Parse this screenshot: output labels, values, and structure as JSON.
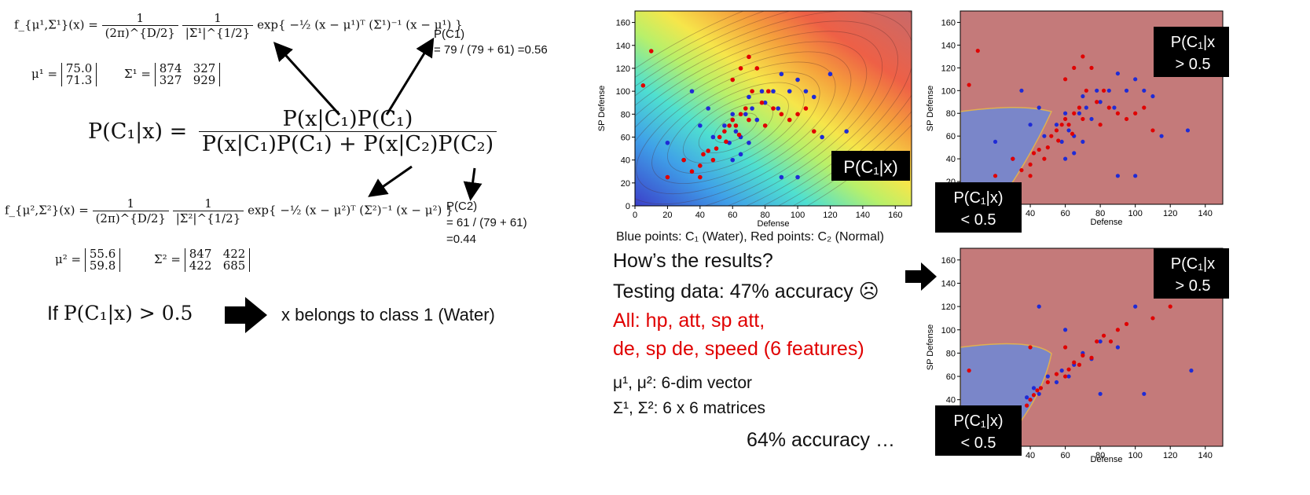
{
  "left": {
    "f1": {
      "lhs": "f_{μ¹,Σ¹}(x) =",
      "coef1_num": "1",
      "coef1_den": "(2π)^{D/2}",
      "coef2_num": "1",
      "coef2_den": "|Σ¹|^{1/2}",
      "exp": "exp{ −½ (x − μ¹)ᵀ (Σ¹)⁻¹ (x − μ¹) }"
    },
    "mu1": {
      "label": "μ¹ =",
      "values": [
        "75.0",
        "71.3"
      ]
    },
    "sigma1": {
      "label": "Σ¹ =",
      "row1": [
        "874",
        "327"
      ],
      "row2": [
        "327",
        "929"
      ]
    },
    "pc1": {
      "label": "P(C1)",
      "value": "= 79 / (79 + 61) =0.56"
    },
    "bayes": {
      "lhs": "P(C₁|x)  =",
      "numerator": "P(x|C₁)P(C₁)",
      "denominator": "P(x|C₁)P(C₁) + P(x|C₂)P(C₂)"
    },
    "f2": {
      "lhs": "f_{μ²,Σ²}(x) =",
      "coef1_num": "1",
      "coef1_den": "(2π)^{D/2}",
      "coef2_num": "1",
      "coef2_den": "|Σ²|^{1/2}",
      "exp": "exp{ −½ (x − μ²)ᵀ (Σ²)⁻¹ (x − μ²) }"
    },
    "pc2": {
      "label": "P(C2)",
      "value1": "= 61 / (79 + 61)",
      "value2": "=0.44"
    },
    "mu2": {
      "label": "μ² =",
      "values": [
        "55.6",
        "59.8"
      ]
    },
    "sigma2": {
      "label": "Σ² =",
      "row1": [
        "847",
        "422"
      ],
      "row2": [
        "422",
        "685"
      ]
    },
    "rule": {
      "if": "If",
      "cond": "P(C₁|x) > 0.5",
      "result": "x belongs to class 1 (Water)"
    }
  },
  "middle": {
    "legend": "Blue points: C₁ (Water), Red points: C₂ (Normal)",
    "question": "How’s the results?",
    "testing": "Testing data: 47% accuracy ☹",
    "all_line1": "All: hp, att, sp att,",
    "all_line2": "de, sp de, speed (6 features)",
    "mu_line": "μ¹, μ²: 6-dim vector",
    "sigma_line": "Σ¹, Σ²: 6 x 6 matrices",
    "accuracy": "64% accuracy …"
  },
  "plots": {
    "xlabel": "Defense",
    "ylabel": "SP Defense",
    "label_posterior": "P(C₁|x)",
    "label_gt_1": "P(C₁|x",
    "label_gt_2": "> 0.5",
    "label_lt_1": "P(C₁|x)",
    "label_lt_2": "< 0.5"
  },
  "chart_data": [
    {
      "type": "scatter",
      "title": "",
      "xlabel": "Defense",
      "ylabel": "SP Defense",
      "xlim": [
        0,
        170
      ],
      "ylim": [
        0,
        170
      ],
      "xticks": [
        0,
        20,
        40,
        60,
        80,
        100,
        120,
        140,
        160
      ],
      "yticks": [
        0,
        20,
        40,
        60,
        80,
        100,
        120,
        140,
        160
      ],
      "background": "posterior heatmap P(C1|x)",
      "series": [
        {
          "color": "#1f2bd6",
          "points": [
            [
              20,
              55
            ],
            [
              30,
              40
            ],
            [
              40,
              70
            ],
            [
              48,
              60
            ],
            [
              55,
              70
            ],
            [
              58,
              55
            ],
            [
              60,
              40
            ],
            [
              62,
              65
            ],
            [
              65,
              60
            ],
            [
              65,
              45
            ],
            [
              68,
              80
            ],
            [
              70,
              95
            ],
            [
              72,
              85
            ],
            [
              75,
              75
            ],
            [
              78,
              100
            ],
            [
              80,
              90
            ],
            [
              85,
              100
            ],
            [
              88,
              85
            ],
            [
              90,
              115
            ],
            [
              95,
              100
            ],
            [
              100,
              110
            ],
            [
              105,
              100
            ],
            [
              110,
              95
            ],
            [
              115,
              60
            ],
            [
              130,
              65
            ],
            [
              90,
              25
            ],
            [
              100,
              25
            ],
            [
              120,
              115
            ],
            [
              70,
              55
            ],
            [
              60,
              80
            ],
            [
              45,
              85
            ],
            [
              35,
              100
            ]
          ]
        },
        {
          "color": "#e00000",
          "points": [
            [
              5,
              105
            ],
            [
              10,
              135
            ],
            [
              20,
              25
            ],
            [
              30,
              40
            ],
            [
              35,
              30
            ],
            [
              40,
              35
            ],
            [
              42,
              45
            ],
            [
              45,
              48
            ],
            [
              50,
              50
            ],
            [
              52,
              60
            ],
            [
              55,
              65
            ],
            [
              58,
              70
            ],
            [
              60,
              75
            ],
            [
              62,
              70
            ],
            [
              65,
              80
            ],
            [
              68,
              85
            ],
            [
              70,
              75
            ],
            [
              72,
              100
            ],
            [
              75,
              120
            ],
            [
              78,
              90
            ],
            [
              80,
              70
            ],
            [
              82,
              100
            ],
            [
              85,
              85
            ],
            [
              90,
              80
            ],
            [
              95,
              75
            ],
            [
              100,
              80
            ],
            [
              105,
              85
            ],
            [
              110,
              65
            ],
            [
              70,
              130
            ],
            [
              65,
              120
            ],
            [
              60,
              110
            ],
            [
              40,
              25
            ],
            [
              48,
              40
            ],
            [
              56,
              56
            ],
            [
              64,
              62
            ]
          ]
        }
      ]
    },
    {
      "type": "scatter",
      "title": "",
      "xlabel": "Defense",
      "ylabel": "SP Defense",
      "xlim": [
        0,
        150
      ],
      "ylim": [
        0,
        170
      ],
      "xticks": [
        40,
        60,
        80,
        100,
        120,
        140
      ],
      "yticks": [
        20,
        40,
        60,
        80,
        100,
        120,
        140,
        160
      ],
      "background": "decision region P(C1|x) > 0.5 vs < 0.5"
    },
    {
      "type": "scatter",
      "title": "",
      "xlabel": "Defense",
      "ylabel": "SP Defense",
      "xlim": [
        0,
        150
      ],
      "ylim": [
        0,
        170
      ],
      "xticks": [
        40,
        60,
        80,
        100,
        120,
        140
      ],
      "yticks": [
        40,
        60,
        80,
        100,
        120,
        140,
        160
      ],
      "background": "decision region P(C1|x) > 0.5 vs < 0.5 (testing data)"
    }
  ],
  "colors": {
    "blue": "#1f2bd6",
    "red": "#e00000",
    "region_blue": "#7a86c9",
    "region_red": "#c47a7a",
    "black": "#000000"
  }
}
